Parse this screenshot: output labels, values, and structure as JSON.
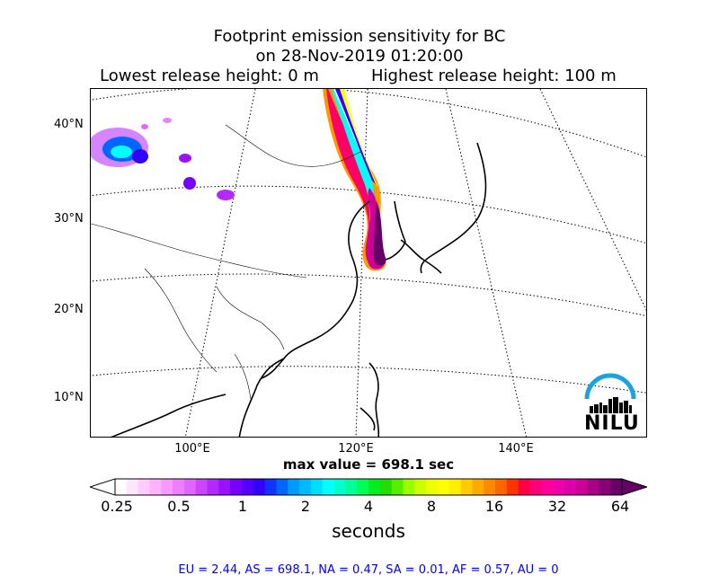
{
  "title": {
    "line1": "Footprint emission sensitivity for BC",
    "line2": "on 28-Nov-2019 01:20:00",
    "lowest": "Lowest release height: 0 m",
    "highest": "Highest release height: 100 m"
  },
  "map": {
    "lat_labels": [
      "40°N",
      "30°N",
      "20°N",
      "10°N"
    ],
    "lon_labels": [
      "100°E",
      "120°E",
      "140°E"
    ],
    "logo_text": "NILU",
    "logo_color": "#1aa3e0"
  },
  "max_value_text": "max value = 698.1 sec",
  "colorbar": {
    "tick_labels": [
      "0.25",
      "0.5",
      "1",
      "2",
      "4",
      "8",
      "16",
      "32",
      "64"
    ],
    "label": "seconds",
    "colors": [
      "#ffffff",
      "#ffe6ff",
      "#ffccff",
      "#ffb3ff",
      "#f799ff",
      "#ee7fff",
      "#e066ff",
      "#cc44ff",
      "#b32aff",
      "#9911ff",
      "#7700ff",
      "#5500ff",
      "#3300ff",
      "#1133ff",
      "#0066ff",
      "#0099ff",
      "#00bbff",
      "#00ddff",
      "#00ffff",
      "#00ffcc",
      "#00ff99",
      "#00ff55",
      "#00ee22",
      "#22dd00",
      "#55ee00",
      "#99ff00",
      "#ccff00",
      "#eeff00",
      "#ffff00",
      "#ffee00",
      "#ffcc00",
      "#ffaa00",
      "#ff8800",
      "#ff6600",
      "#ff3300",
      "#ff0044",
      "#ff0077",
      "#ff0099",
      "#ee00aa",
      "#dd00aa",
      "#cc0099",
      "#aa0088",
      "#880077",
      "#660066"
    ]
  },
  "footer": "EU = 2.44,  AS = 698.1,  NA = 0.47,  SA = 0.01,  AF = 0.57,  AU = 0"
}
